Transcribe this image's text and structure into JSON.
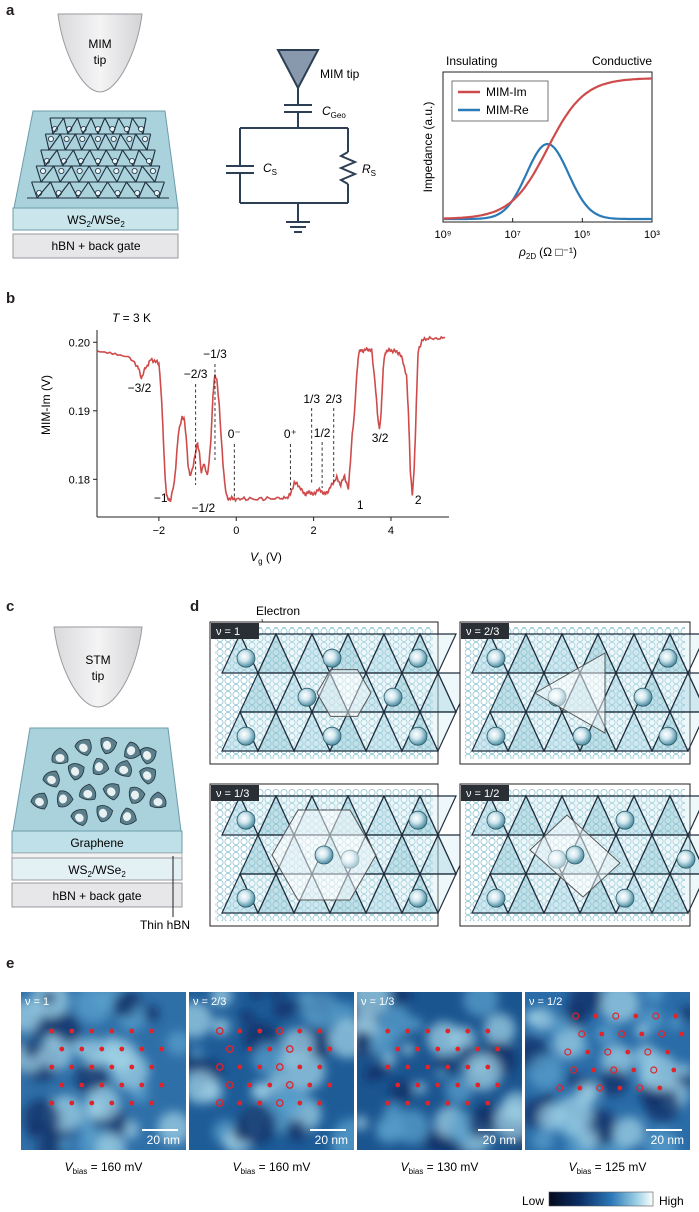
{
  "panels": {
    "a": {
      "label": "a",
      "mim_tip": "MIM\ntip",
      "sample": "WS2/WSe2",
      "sample_base": "WS",
      "sample_sub1": "2",
      "sample_mid": "/WSe",
      "sample_sub2": "2",
      "gate": "hBN + back gate",
      "circuit": {
        "tip": "MIM tip",
        "cgeo": "C",
        "cgeo_sub": "Geo",
        "cs": "C",
        "cs_sub": "S",
        "rs": "R",
        "rs_sub": "S"
      },
      "plot": {
        "insulating": "Insulating",
        "conductive": "Conductive",
        "ylabel": "Impedance (a.u.)",
        "xlabel_sym": "ρ",
        "xlabel_sub": "2D",
        "xlabel_unit": "(Ω □⁻¹)",
        "xticks": [
          "10⁹",
          "10⁷",
          "10⁵",
          "10³"
        ],
        "legend": [
          "MIM-Im",
          "MIM-Re"
        ],
        "colors": {
          "im": "#cf4b4b",
          "re": "#2a7ab8"
        }
      }
    },
    "b": {
      "label": "b",
      "temperature": "T = 3 K",
      "t_sym": "T",
      "t_val": " = 3 K",
      "ylabel": "MIM-Im (V)",
      "xlabel_sym": "V",
      "xlabel_sub": "g",
      "xlabel_unit": " (V)",
      "annotations": [
        "−3/2",
        "−2/3",
        "−1/3",
        "0⁻",
        "0⁺",
        "1/3",
        "1/2",
        "2/3",
        "3/2",
        "−1",
        "−1/2",
        "1",
        "2"
      ]
    },
    "c": {
      "label": "c",
      "stm_tip": "STM\ntip",
      "graphene": "Graphene",
      "sample_base": "WS",
      "sample_sub1": "2",
      "sample_mid": "/WSe",
      "sample_sub2": "2",
      "gate": "hBN + back gate",
      "thin_hbn": "Thin hBN"
    },
    "d": {
      "label": "d",
      "electron": "Electron",
      "tags": [
        "ν = 1",
        "ν = 2/3",
        "ν = 1/3",
        "ν = 1/2"
      ]
    },
    "e": {
      "label": "e",
      "tags": [
        "ν = 1",
        "ν = 2/3",
        "ν = 1/3",
        "ν = 1/2"
      ],
      "scalebar": "20 nm",
      "vbias_sym": "V",
      "vbias_sub": "bias",
      "vbias_vals": [
        " = 160 mV",
        " = 160 mV",
        " = 130 mV",
        " = 125 mV"
      ],
      "colorbar_low": "Low",
      "colorbar_high": "High"
    }
  },
  "chart_data": [
    {
      "type": "line",
      "panel": "a",
      "xlabel": "ρ2D (Ω □⁻¹)",
      "ylabel": "Impedance (a.u.)",
      "x_scale": "log",
      "x_reversed": true,
      "xlim": [
        1000000000,
        1000
      ],
      "x_ticks": [
        "10⁹",
        "10⁷",
        "10⁵",
        "10³"
      ],
      "series": [
        {
          "name": "MIM-Im",
          "color": "#cf4b4b",
          "x": [
            1000000000,
            100000000,
            30000000,
            10000000,
            3000000,
            1000000,
            300000,
            100000,
            10000,
            1000
          ],
          "y": [
            0.03,
            0.04,
            0.07,
            0.14,
            0.33,
            0.6,
            0.82,
            0.92,
            0.96,
            0.96
          ]
        },
        {
          "name": "MIM-Re",
          "color": "#2a7ab8",
          "x": [
            1000000000,
            100000000,
            30000000,
            10000000,
            3000000,
            1000000,
            300000,
            100000,
            10000,
            1000
          ],
          "y": [
            0.02,
            0.04,
            0.1,
            0.26,
            0.45,
            0.5,
            0.35,
            0.15,
            0.03,
            0.02
          ]
        }
      ]
    },
    {
      "type": "line",
      "panel": "b",
      "xlabel": "Vg (V)",
      "ylabel": "MIM-Im (V)",
      "xlim": [
        -3.6,
        5.5
      ],
      "ylim": [
        0.1745,
        0.2015
      ],
      "x_ticks": [
        -2,
        0,
        2,
        4
      ],
      "y_ticks": [
        0.18,
        0.19,
        0.2
      ],
      "series": [
        {
          "name": "",
          "color": "#cf4b4b",
          "x": [
            -3.6,
            -3.2,
            -2.8,
            -2.55,
            -2.45,
            -2.35,
            -2.2,
            -2.1,
            -2.0,
            -1.95,
            -1.9,
            -1.85,
            -1.8,
            -1.75,
            -1.7,
            -1.6,
            -1.5,
            -1.4,
            -1.35,
            -1.3,
            -1.25,
            -1.2,
            -1.15,
            -1.1,
            -1.05,
            -1.0,
            -0.95,
            -0.9,
            -0.85,
            -0.8,
            -0.75,
            -0.7,
            -0.65,
            -0.6,
            -0.55,
            -0.5,
            -0.45,
            -0.4,
            -0.35,
            -0.3,
            -0.25,
            -0.2,
            -0.1,
            0.0,
            0.2,
            0.5,
            0.8,
            1.1,
            1.3,
            1.4,
            1.5,
            1.6,
            1.7,
            1.8,
            1.9,
            2.0,
            2.1,
            2.2,
            2.3,
            2.4,
            2.5,
            2.6,
            2.7,
            2.8,
            2.9,
            3.0,
            3.05,
            3.1,
            3.15,
            3.2,
            3.3,
            3.4,
            3.5,
            3.6,
            3.65,
            3.7,
            3.75,
            3.8,
            3.85,
            3.9,
            4.0,
            4.1,
            4.2,
            4.3,
            4.4,
            4.45,
            4.5,
            4.55,
            4.6,
            4.65,
            4.7,
            4.8,
            5.0,
            5.2,
            5.4
          ],
          "y": [
            0.1985,
            0.1983,
            0.198,
            0.1965,
            0.1948,
            0.1962,
            0.1975,
            0.1972,
            0.197,
            0.1935,
            0.188,
            0.1815,
            0.1775,
            0.177,
            0.177,
            0.1795,
            0.1865,
            0.1892,
            0.1888,
            0.1865,
            0.1825,
            0.1805,
            0.181,
            0.1825,
            0.184,
            0.1852,
            0.1838,
            0.1808,
            0.1822,
            0.1818,
            0.1805,
            0.1825,
            0.1865,
            0.1925,
            0.1952,
            0.1945,
            0.1915,
            0.187,
            0.183,
            0.1795,
            0.1775,
            0.1772,
            0.1772,
            0.1771,
            0.1772,
            0.1771,
            0.1772,
            0.1772,
            0.1773,
            0.1778,
            0.1795,
            0.1792,
            0.1783,
            0.1778,
            0.1782,
            0.1777,
            0.1785,
            0.1783,
            0.1778,
            0.1785,
            0.1795,
            0.1802,
            0.1792,
            0.1805,
            0.1785,
            0.1868,
            0.189,
            0.194,
            0.1978,
            0.1988,
            0.1988,
            0.199,
            0.1988,
            0.1935,
            0.1895,
            0.1872,
            0.1902,
            0.1962,
            0.1985,
            0.1988,
            0.1988,
            0.1987,
            0.1985,
            0.1975,
            0.195,
            0.19,
            0.1815,
            0.1775,
            0.1815,
            0.19,
            0.1985,
            0.2003,
            0.2006,
            0.2005,
            0.2007
          ]
        }
      ],
      "annotations": [
        {
          "text": "−3/2",
          "x": -2.45
        },
        {
          "text": "−2/3",
          "x": -1.05
        },
        {
          "text": "−1/3",
          "x": -0.55
        },
        {
          "text": "0⁻",
          "x": -0.05
        },
        {
          "text": "0⁺",
          "x": 1.4
        },
        {
          "text": "1/3",
          "x": 1.95
        },
        {
          "text": "1/2",
          "x": 2.2
        },
        {
          "text": "2/3",
          "x": 2.5
        },
        {
          "text": "3/2",
          "x": 3.72
        },
        {
          "text": "−1",
          "x": -1.8
        },
        {
          "text": "−1/2",
          "x": -0.85
        },
        {
          "text": "1",
          "x": 3.05
        },
        {
          "text": "2",
          "x": 4.55
        }
      ]
    }
  ]
}
